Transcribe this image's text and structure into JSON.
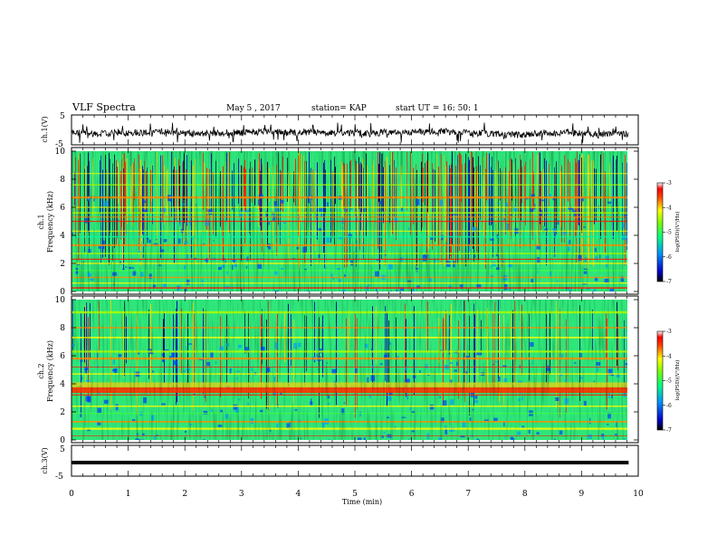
{
  "header": {
    "title": "VLF Spectra",
    "date": "May 5  , 2017",
    "station": "station= KAP",
    "start": "start  UT  =   16: 50: 1"
  },
  "chart_data": [
    {
      "type": "line",
      "ylabel": "ch.1(V)",
      "ylim": [
        -5,
        5
      ],
      "yticks": [
        "5",
        "-5"
      ],
      "xlim": [
        0,
        10
      ],
      "x_end": 9.83,
      "note": "noisy voltage trace around -1 V, fluctuating roughly between -3 and +1.5 V"
    },
    {
      "type": "heatmap",
      "ylabel": "ch.1\nFrequency  (kHz)",
      "ylim": [
        0,
        10
      ],
      "yticks": [
        "0",
        "2",
        "4",
        "6",
        "8",
        "10"
      ],
      "xlim": [
        0,
        10
      ],
      "x_end": 9.83,
      "colorbar": {
        "label": "log(PSD)(V²/Hz)",
        "range": [
          -7,
          -3
        ],
        "ticks": [
          "-3",
          "-4",
          "-5",
          "-6",
          "-7"
        ]
      },
      "bands_khz": [
        0.25,
        0.6,
        1.0,
        1.5,
        2.0,
        2.3,
        2.7,
        3.3,
        3.9,
        4.3,
        5.0,
        5.3,
        5.6,
        6.0,
        6.7,
        7.6,
        8.4
      ]
    },
    {
      "type": "heatmap",
      "ylabel": "ch.2\nFrequency  (kHz)",
      "ylim": [
        0,
        10
      ],
      "yticks": [
        "0",
        "2",
        "4",
        "6",
        "8",
        "10"
      ],
      "xlim": [
        0,
        10
      ],
      "x_end": 9.83,
      "colorbar": {
        "label": "log(PSD)(V²/Hz)",
        "range": [
          -7,
          -3
        ],
        "ticks": [
          "-3",
          "-4",
          "-5",
          "-6",
          "-7"
        ]
      },
      "bands_khz": [
        0.3,
        0.8,
        1.3,
        1.9,
        2.4,
        3.2,
        3.5,
        3.7,
        4.0,
        4.7,
        5.2,
        5.8,
        6.3,
        7.3,
        8.0,
        9.1
      ]
    },
    {
      "type": "line",
      "ylabel": "ch.3(V)",
      "ylim": [
        -5,
        5
      ],
      "yticks": [
        "5",
        "-5"
      ],
      "xlim": [
        0,
        10
      ],
      "x_end": 9.83,
      "constant_value": -0.6
    }
  ],
  "xaxis": {
    "label": "Time  (min)",
    "ticks": [
      "0",
      "1",
      "2",
      "3",
      "4",
      "5",
      "6",
      "7",
      "8",
      "9",
      "10"
    ]
  }
}
